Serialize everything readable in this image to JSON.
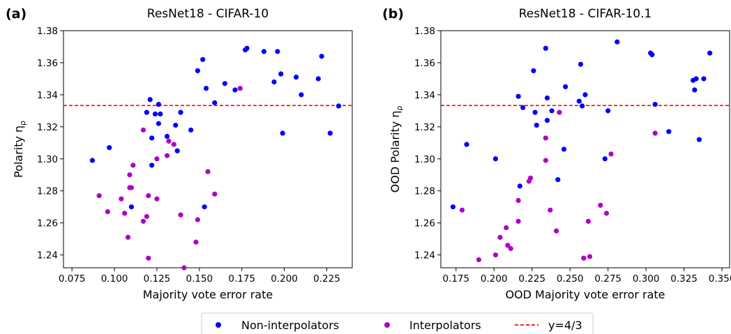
{
  "chart_data": [
    {
      "type": "scatter",
      "panel_label": "(a)",
      "title": "ResNet18 - CIFAR-10",
      "xlabel": "Majority vote error rate",
      "ylabel": "Polarity η",
      "ylabel_sub": "ρ",
      "xlim": [
        0.07,
        0.24
      ],
      "ylim": [
        1.232,
        1.38
      ],
      "xticks": [
        0.075,
        0.1,
        0.125,
        0.15,
        0.175,
        0.2,
        0.225
      ],
      "xtick_labels": [
        "0.075",
        "0.100",
        "0.125",
        "0.150",
        "0.175",
        "0.200",
        "0.225"
      ],
      "yticks": [
        1.24,
        1.26,
        1.28,
        1.3,
        1.32,
        1.34,
        1.36,
        1.38
      ],
      "ytick_labels": [
        "1.24",
        "1.26",
        "1.28",
        "1.30",
        "1.32",
        "1.34",
        "1.36",
        "1.38"
      ],
      "grid": false,
      "reference_line": {
        "y": 1.3333,
        "label": "y=4/3",
        "color": "#ff0000",
        "style": "dashed"
      },
      "series": [
        {
          "name": "Non-interpolators",
          "color": "#0000ff",
          "points": [
            [
              0.087,
              1.299
            ],
            [
              0.097,
              1.307
            ],
            [
              0.11,
              1.27
            ],
            [
              0.119,
              1.329
            ],
            [
              0.121,
              1.337
            ],
            [
              0.122,
              1.313
            ],
            [
              0.122,
              1.296
            ],
            [
              0.124,
              1.328
            ],
            [
              0.126,
              1.322
            ],
            [
              0.126,
              1.334
            ],
            [
              0.127,
              1.328
            ],
            [
              0.131,
              1.314
            ],
            [
              0.136,
              1.321
            ],
            [
              0.137,
              1.305
            ],
            [
              0.139,
              1.329
            ],
            [
              0.145,
              1.318
            ],
            [
              0.149,
              1.355
            ],
            [
              0.152,
              1.362
            ],
            [
              0.154,
              1.344
            ],
            [
              0.153,
              1.27
            ],
            [
              0.159,
              1.335
            ],
            [
              0.165,
              1.347
            ],
            [
              0.171,
              1.343
            ],
            [
              0.177,
              1.368
            ],
            [
              0.178,
              1.369
            ],
            [
              0.188,
              1.367
            ],
            [
              0.194,
              1.348
            ],
            [
              0.196,
              1.367
            ],
            [
              0.198,
              1.353
            ],
            [
              0.199,
              1.316
            ],
            [
              0.207,
              1.351
            ],
            [
              0.21,
              1.34
            ],
            [
              0.22,
              1.35
            ],
            [
              0.222,
              1.364
            ],
            [
              0.227,
              1.316
            ],
            [
              0.232,
              1.333
            ]
          ]
        },
        {
          "name": "Interpolators",
          "color": "#b000c8",
          "points": [
            [
              0.091,
              1.277
            ],
            [
              0.096,
              1.267
            ],
            [
              0.104,
              1.275
            ],
            [
              0.106,
              1.266
            ],
            [
              0.108,
              1.251
            ],
            [
              0.109,
              1.29
            ],
            [
              0.109,
              1.282
            ],
            [
              0.11,
              1.282
            ],
            [
              0.111,
              1.296
            ],
            [
              0.117,
              1.318
            ],
            [
              0.117,
              1.261
            ],
            [
              0.119,
              1.264
            ],
            [
              0.12,
              1.277
            ],
            [
              0.12,
              1.238
            ],
            [
              0.125,
              1.3
            ],
            [
              0.125,
              1.275
            ],
            [
              0.131,
              1.302
            ],
            [
              0.132,
              1.311
            ],
            [
              0.135,
              1.309
            ],
            [
              0.139,
              1.265
            ],
            [
              0.141,
              1.232
            ],
            [
              0.148,
              1.248
            ],
            [
              0.149,
              1.262
            ],
            [
              0.155,
              1.292
            ],
            [
              0.159,
              1.278
            ],
            [
              0.174,
              1.344
            ]
          ]
        }
      ]
    },
    {
      "type": "scatter",
      "panel_label": "(b)",
      "title": "ResNet18 - CIFAR-10.1",
      "xlabel": "OOD Majority vote error rate",
      "ylabel": "OOD Polarity η",
      "ylabel_sub": "ρ",
      "xlim": [
        0.165,
        0.355
      ],
      "ylim": [
        1.232,
        1.38
      ],
      "xticks": [
        0.175,
        0.2,
        0.225,
        0.25,
        0.275,
        0.3,
        0.325,
        0.35
      ],
      "xtick_labels": [
        "0.175",
        "0.200",
        "0.225",
        "0.250",
        "0.275",
        "0.300",
        "0.325",
        "0.350"
      ],
      "yticks": [
        1.24,
        1.26,
        1.28,
        1.3,
        1.32,
        1.34,
        1.36,
        1.38
      ],
      "ytick_labels": [
        "1.24",
        "1.26",
        "1.28",
        "1.30",
        "1.32",
        "1.34",
        "1.36",
        "1.38"
      ],
      "grid": false,
      "reference_line": {
        "y": 1.3333,
        "label": "y=4/3",
        "color": "#ff0000",
        "style": "dashed"
      },
      "series": [
        {
          "name": "Non-interpolators",
          "color": "#0000ff",
          "points": [
            [
              0.173,
              1.27
            ],
            [
              0.182,
              1.309
            ],
            [
              0.201,
              1.3
            ],
            [
              0.216,
              1.339
            ],
            [
              0.217,
              1.283
            ],
            [
              0.219,
              1.332
            ],
            [
              0.226,
              1.355
            ],
            [
              0.227,
              1.329
            ],
            [
              0.228,
              1.321
            ],
            [
              0.234,
              1.369
            ],
            [
              0.235,
              1.338
            ],
            [
              0.235,
              1.324
            ],
            [
              0.238,
              1.33
            ],
            [
              0.242,
              1.287
            ],
            [
              0.246,
              1.306
            ],
            [
              0.247,
              1.345
            ],
            [
              0.256,
              1.336
            ],
            [
              0.257,
              1.359
            ],
            [
              0.258,
              1.333
            ],
            [
              0.26,
              1.34
            ],
            [
              0.273,
              1.3
            ],
            [
              0.275,
              1.33
            ],
            [
              0.281,
              1.373
            ],
            [
              0.303,
              1.366
            ],
            [
              0.304,
              1.365
            ],
            [
              0.306,
              1.334
            ],
            [
              0.315,
              1.317
            ],
            [
              0.331,
              1.349
            ],
            [
              0.332,
              1.343
            ],
            [
              0.333,
              1.35
            ],
            [
              0.335,
              1.312
            ],
            [
              0.338,
              1.35
            ],
            [
              0.342,
              1.366
            ]
          ]
        },
        {
          "name": "Interpolators",
          "color": "#b000c8",
          "points": [
            [
              0.179,
              1.268
            ],
            [
              0.19,
              1.237
            ],
            [
              0.201,
              1.24
            ],
            [
              0.204,
              1.251
            ],
            [
              0.208,
              1.257
            ],
            [
              0.209,
              1.246
            ],
            [
              0.211,
              1.244
            ],
            [
              0.216,
              1.261
            ],
            [
              0.216,
              1.274
            ],
            [
              0.223,
              1.286
            ],
            [
              0.224,
              1.288
            ],
            [
              0.234,
              1.299
            ],
            [
              0.234,
              1.313
            ],
            [
              0.237,
              1.268
            ],
            [
              0.241,
              1.255
            ],
            [
              0.243,
              1.329
            ],
            [
              0.259,
              1.238
            ],
            [
              0.262,
              1.261
            ],
            [
              0.263,
              1.239
            ],
            [
              0.27,
              1.271
            ],
            [
              0.274,
              1.266
            ],
            [
              0.277,
              1.303
            ],
            [
              0.306,
              1.316
            ]
          ]
        }
      ]
    }
  ],
  "legend": {
    "position": "bottom-center",
    "items": [
      {
        "label": "Non-interpolators",
        "kind": "marker",
        "color": "#0000ff"
      },
      {
        "label": "Interpolators",
        "kind": "marker",
        "color": "#b000c8"
      },
      {
        "label": "y=4/3",
        "kind": "dashed-line",
        "color": "#ff0000"
      }
    ]
  }
}
